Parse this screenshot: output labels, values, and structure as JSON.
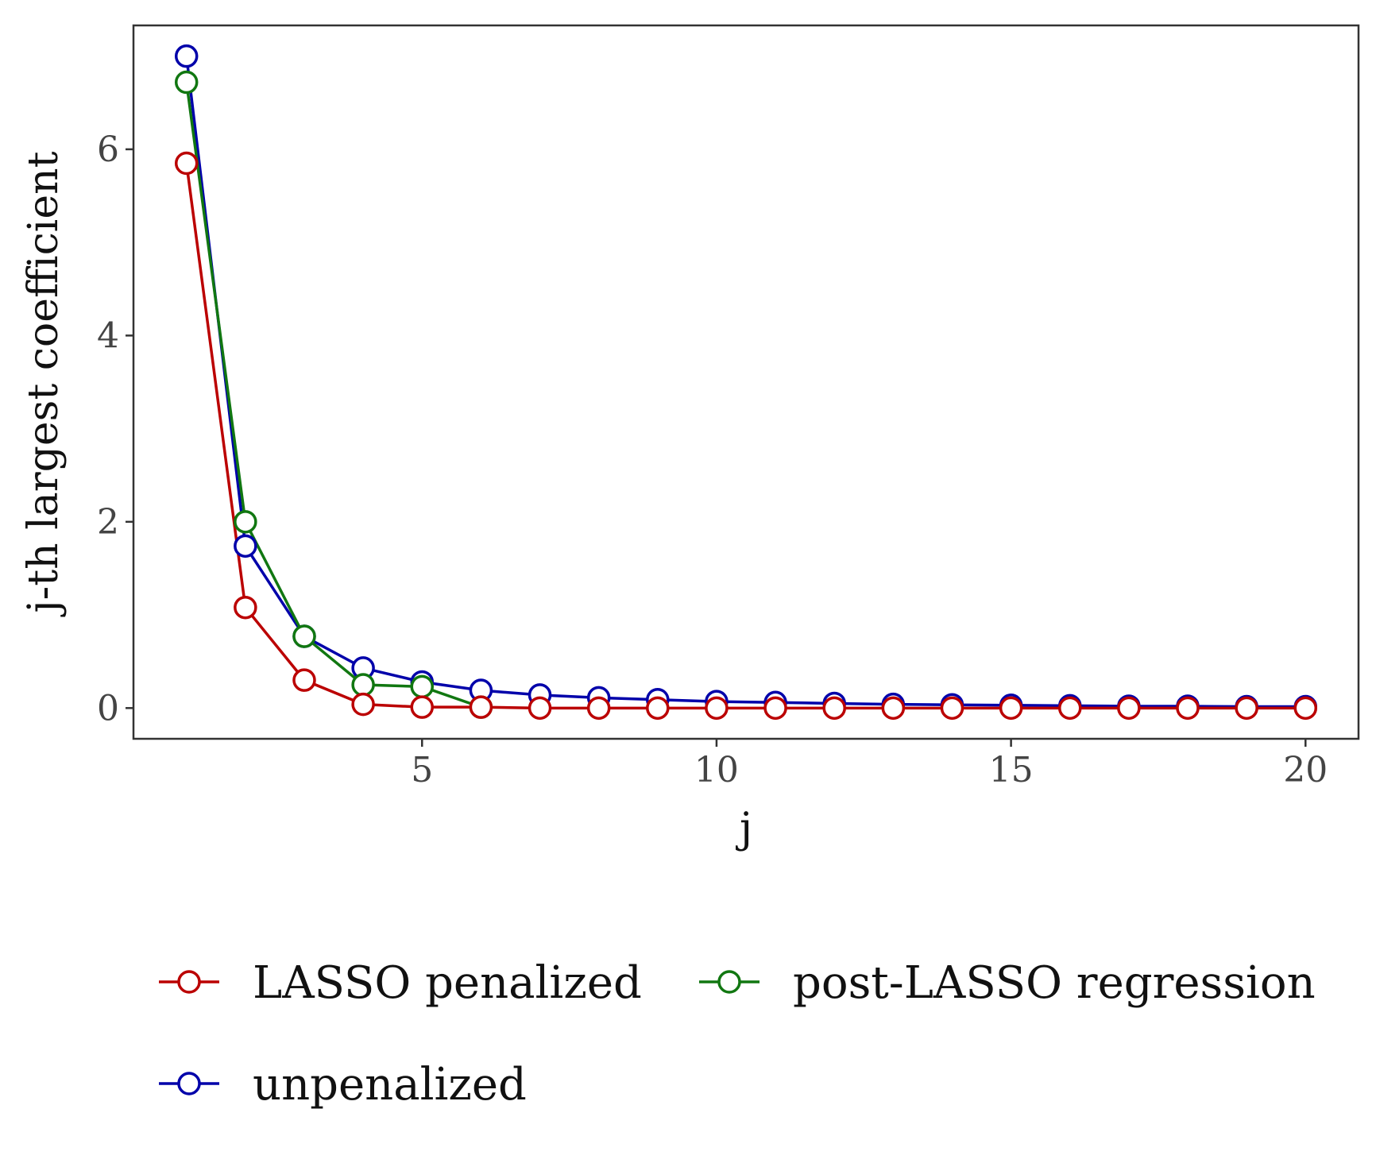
{
  "chart_data": {
    "type": "line",
    "xlabel": "j",
    "ylabel": "j-th largest coefficient",
    "xlim": [
      0.1,
      20.9
    ],
    "ylim": [
      -0.33,
      7.33
    ],
    "x_ticks": [
      5,
      10,
      15,
      20
    ],
    "y_ticks": [
      0,
      2,
      4,
      6
    ],
    "grid": false,
    "legend_position": "bottom",
    "series": [
      {
        "name": "LASSO penalized",
        "color": "#BB0000",
        "x": [
          1,
          2,
          3,
          4,
          5,
          6,
          7,
          8,
          9,
          10,
          11,
          12,
          13,
          14,
          15,
          16,
          17,
          18,
          19,
          20
        ],
        "y": [
          5.85,
          1.08,
          0.3,
          0.04,
          0.01,
          0.01,
          0.0,
          0.0,
          0.0,
          0.0,
          0.0,
          0.0,
          0.0,
          0.0,
          0.0,
          0.0,
          0.0,
          0.0,
          0.0,
          0.0
        ]
      },
      {
        "name": "post-LASSO regression",
        "color": "#117711",
        "x": [
          1,
          2,
          3,
          4,
          5,
          6
        ],
        "y": [
          6.72,
          2.0,
          0.77,
          0.25,
          0.23,
          0.01
        ]
      },
      {
        "name": "unpenalized",
        "color": "#0000AA",
        "x": [
          1,
          2,
          3,
          4,
          5,
          6,
          7,
          8,
          9,
          10,
          11,
          12,
          13,
          14,
          15,
          16,
          17,
          18,
          19,
          20
        ],
        "y": [
          7.0,
          1.74,
          0.77,
          0.43,
          0.28,
          0.19,
          0.14,
          0.11,
          0.09,
          0.07,
          0.06,
          0.05,
          0.04,
          0.035,
          0.03,
          0.025,
          0.02,
          0.02,
          0.015,
          0.015
        ]
      }
    ]
  }
}
